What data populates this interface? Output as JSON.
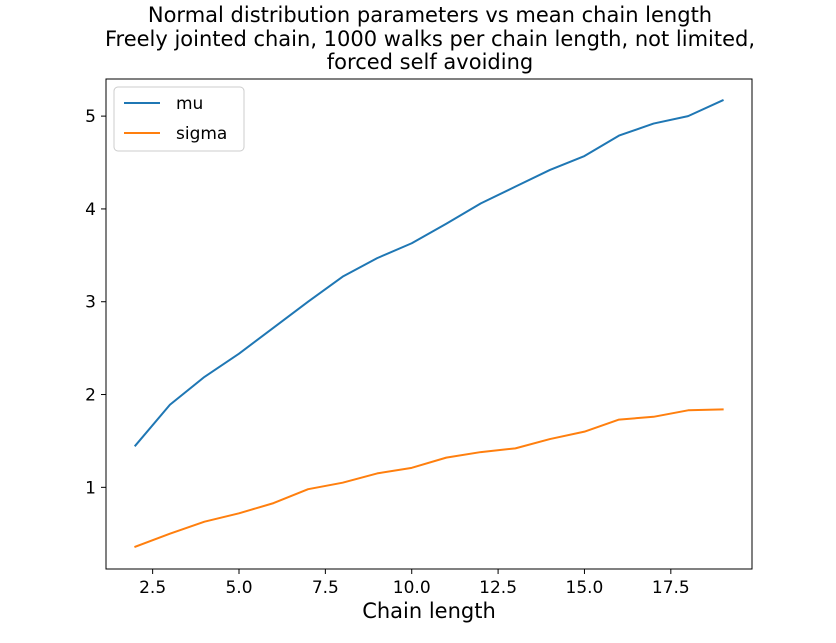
{
  "chart_data": {
    "type": "line",
    "title_lines": [
      "Normal distribution parameters vs mean chain length",
      "Freely jointed chain, 1000 walks per chain length, not limited,",
      "forced self avoiding"
    ],
    "xlabel": "Chain length",
    "ylabel": "",
    "xlim": [
      1.15,
      19.85
    ],
    "ylim": [
      0.12,
      5.4
    ],
    "x_ticks": [
      2.5,
      5.0,
      7.5,
      10.0,
      12.5,
      15.0,
      17.5
    ],
    "x_tick_labels": [
      "2.5",
      "5.0",
      "7.5",
      "10.0",
      "12.5",
      "15.0",
      "17.5"
    ],
    "y_ticks": [
      1,
      2,
      3,
      4,
      5
    ],
    "y_tick_labels": [
      "1",
      "2",
      "3",
      "4",
      "5"
    ],
    "grid": false,
    "legend_position": "top-left",
    "x": [
      2,
      3,
      4,
      5,
      6,
      7,
      8,
      9,
      10,
      11,
      12,
      13,
      14,
      15,
      16,
      17,
      18,
      19
    ],
    "series": [
      {
        "name": "mu",
        "color": "#1f77b4",
        "values": [
          1.45,
          1.89,
          2.19,
          2.44,
          2.72,
          3.0,
          3.27,
          3.47,
          3.63,
          3.84,
          4.06,
          4.24,
          4.42,
          4.57,
          4.79,
          4.92,
          5.0,
          5.17
        ]
      },
      {
        "name": "sigma",
        "color": "#ff7f0e",
        "values": [
          0.36,
          0.5,
          0.63,
          0.72,
          0.83,
          0.98,
          1.05,
          1.15,
          1.21,
          1.32,
          1.38,
          1.42,
          1.52,
          1.6,
          1.73,
          1.76,
          1.83,
          1.84
        ]
      }
    ]
  }
}
